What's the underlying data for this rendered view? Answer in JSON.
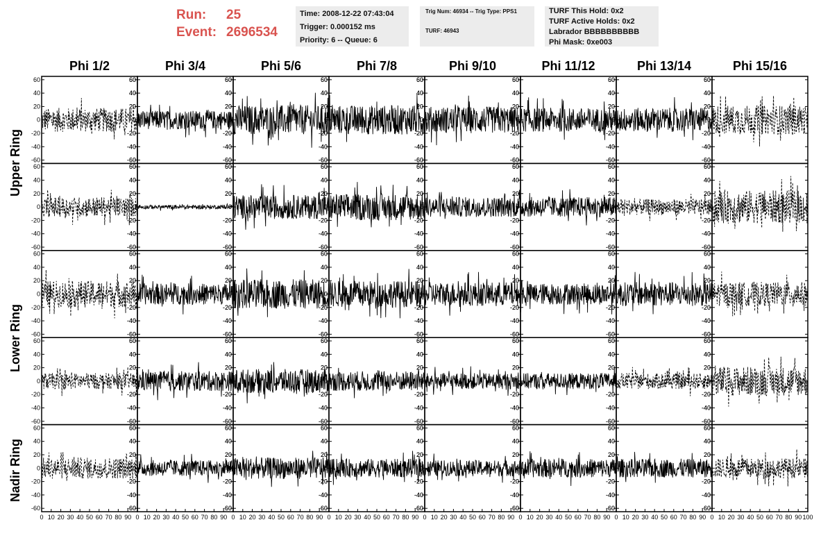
{
  "header": {
    "run_label": "Run:",
    "run_value": "25",
    "event_label": "Event:",
    "event_value": "2696534"
  },
  "info_box_1": {
    "time": "Time: 2008-12-22 07:43:04",
    "trigger": "Trigger: 0.000152 ms",
    "priority": "Priority: 6 -- Queue: 6"
  },
  "info_box_2": {
    "trig": "Trig Num: 46934 -- Trig Type: PPS1",
    "turf": "TURF: 46943"
  },
  "info_box_3": {
    "this_hold": "TURF This Hold: 0x2",
    "active_holds": "TURF Active Holds: 0x2",
    "labrador": "Labrador BBBBBBBBBB",
    "phi_mask": "Phi Mask: 0xe003"
  },
  "columns": [
    "Phi 1/2",
    "Phi 3/4",
    "Phi 5/6",
    "Phi 7/8",
    "Phi 9/10",
    "Phi 11/12",
    "Phi 13/14",
    "Phi 15/16"
  ],
  "ring_labels": [
    "Upper Ring",
    "Lower Ring",
    "Nadir Ring"
  ],
  "chart_data": {
    "type": "line",
    "layout": "5 rows x 8 columns of waveform panels",
    "xlim": [
      0,
      100
    ],
    "ylim": [
      -65,
      65
    ],
    "x_ticks": [
      0,
      10,
      20,
      30,
      40,
      50,
      60,
      70,
      80,
      90,
      100
    ],
    "x_tick_labels": [
      "0",
      "10",
      "20",
      "30",
      "40",
      "50",
      "60",
      "70",
      "80",
      "90",
      "100"
    ],
    "y_ticks": [
      -60,
      -40,
      -20,
      0,
      20,
      40,
      60
    ],
    "y_tick_labels": [
      "-60",
      "-40",
      "-20",
      "0",
      "20",
      "40",
      "60"
    ],
    "panels_amplitude": [
      [
        18,
        14,
        22,
        22,
        20,
        18,
        18,
        22
      ],
      [
        15,
        3,
        18,
        20,
        15,
        15,
        12,
        25
      ],
      [
        20,
        16,
        22,
        20,
        18,
        16,
        18,
        18
      ],
      [
        12,
        15,
        18,
        15,
        12,
        12,
        12,
        22
      ],
      [
        16,
        12,
        16,
        14,
        12,
        14,
        14,
        15
      ]
    ],
    "panels_dashed": [
      [
        true,
        false,
        false,
        false,
        false,
        false,
        false,
        true
      ],
      [
        true,
        false,
        false,
        false,
        false,
        false,
        true,
        true
      ],
      [
        true,
        false,
        false,
        false,
        false,
        false,
        false,
        true
      ],
      [
        true,
        false,
        false,
        false,
        false,
        false,
        true,
        true
      ],
      [
        true,
        false,
        false,
        false,
        false,
        false,
        false,
        true
      ]
    ]
  }
}
